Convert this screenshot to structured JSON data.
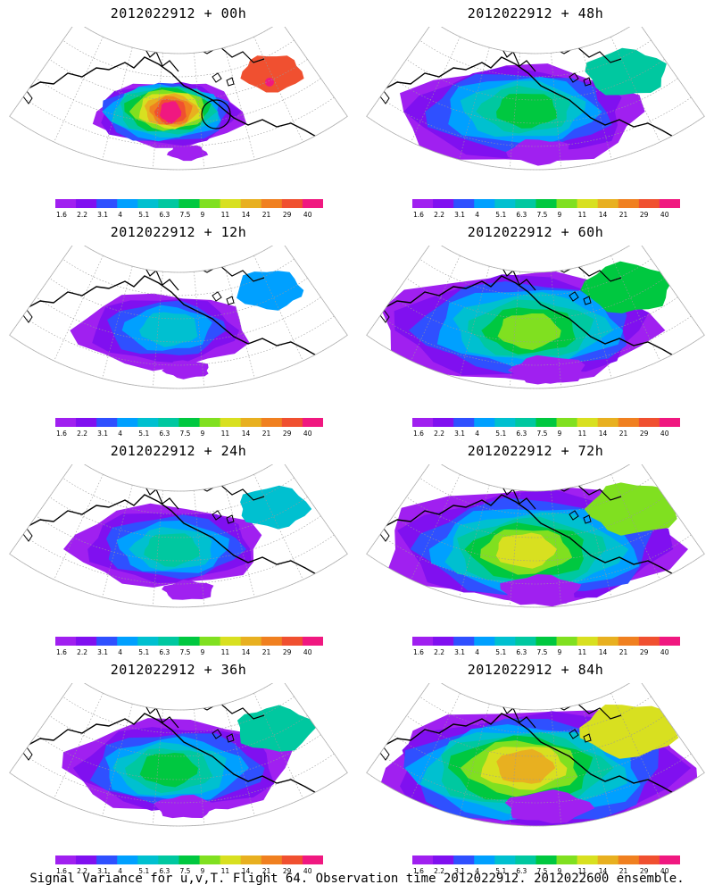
{
  "panels": [
    {
      "title": "2012022912 + 00h",
      "lead_hours": 0,
      "coverage": 0.18,
      "peak_class": 13
    },
    {
      "title": "2012022912 + 48h",
      "lead_hours": 48,
      "coverage": 0.55,
      "peak_class": 7
    },
    {
      "title": "2012022912 + 12h",
      "lead_hours": 12,
      "coverage": 0.28,
      "peak_class": 5
    },
    {
      "title": "2012022912 + 60h",
      "lead_hours": 60,
      "coverage": 0.68,
      "peak_class": 8
    },
    {
      "title": "2012022912 + 24h",
      "lead_hours": 24,
      "coverage": 0.35,
      "peak_class": 6
    },
    {
      "title": "2012022912 + 72h",
      "lead_hours": 72,
      "coverage": 0.75,
      "peak_class": 9
    },
    {
      "title": "2012022912 + 36h",
      "lead_hours": 36,
      "coverage": 0.48,
      "peak_class": 7
    },
    {
      "title": "2012022912 + 84h",
      "lead_hours": 84,
      "coverage": 0.82,
      "peak_class": 10
    }
  ],
  "colorbar": {
    "labels": [
      "1.6",
      "2.2",
      "3.1",
      "4",
      "5.1",
      "6.3",
      "7.5",
      "9",
      "11",
      "14",
      "21",
      "29",
      "40"
    ],
    "colors": [
      "#a020f0",
      "#8010f0",
      "#2f50ff",
      "#00a0ff",
      "#00c0d0",
      "#00c8a0",
      "#00c840",
      "#80e020",
      "#d8e020",
      "#e8b020",
      "#f08020",
      "#f05030",
      "#f01880"
    ]
  },
  "caption": "Signal Variance for u,v,T. Flight 64. Observation time 2012022912. 2012022600 ensemble."
}
